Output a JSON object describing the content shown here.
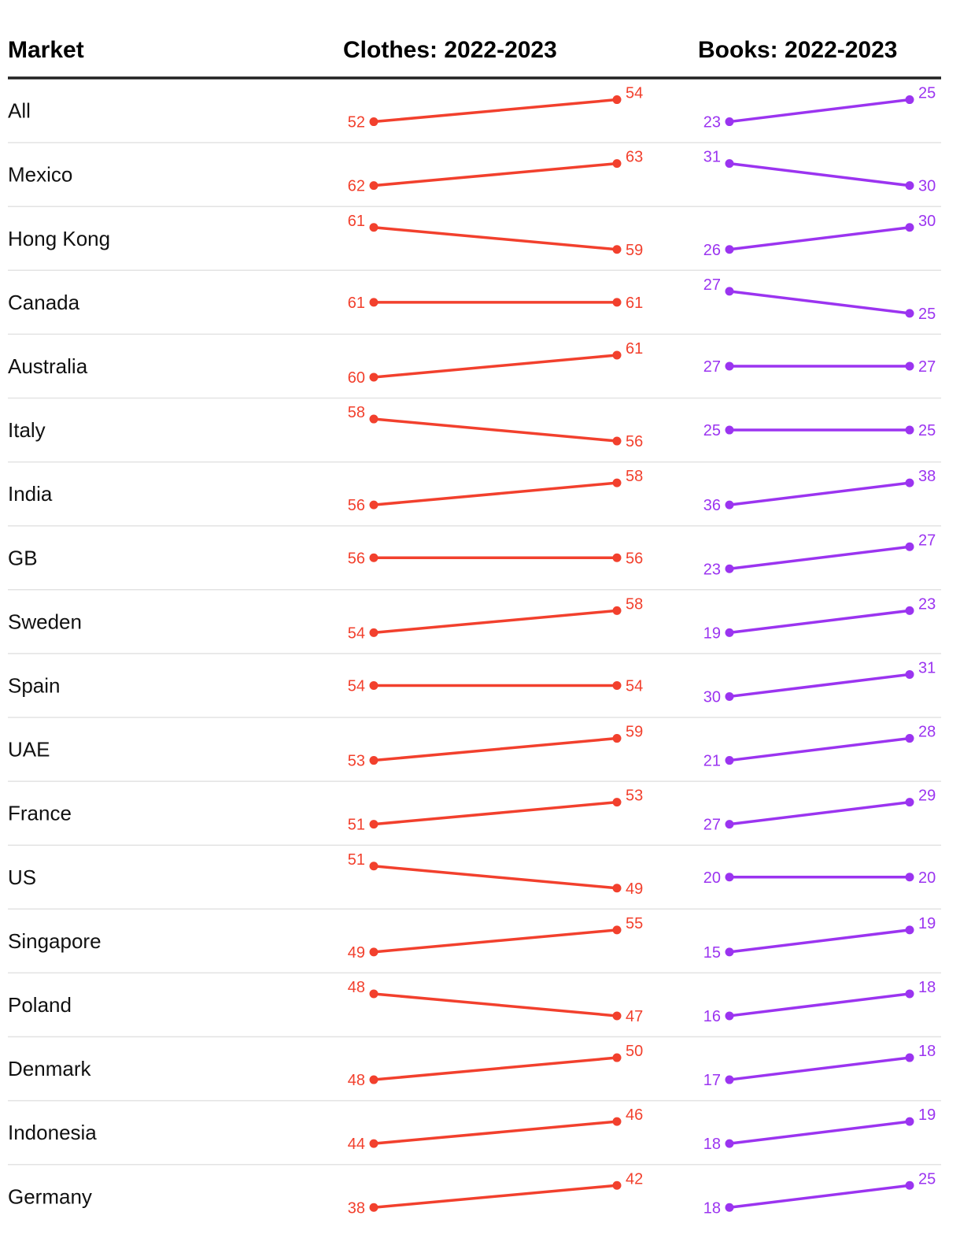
{
  "chart_data": {
    "type": "slope",
    "headers": {
      "market": "Market",
      "clothes": "Clothes: 2022-2023",
      "books": "Books: 2022-2023"
    },
    "colors": {
      "clothes": "#f2402d",
      "books": "#9b34f0",
      "divider": "#222222",
      "row_rule": "#e3e3e3"
    },
    "markets": [
      {
        "name": "All",
        "clothes": [
          52,
          54
        ],
        "books": [
          23,
          25
        ]
      },
      {
        "name": "Mexico",
        "clothes": [
          62,
          63
        ],
        "books": [
          31,
          30
        ]
      },
      {
        "name": "Hong Kong",
        "clothes": [
          61,
          59
        ],
        "books": [
          26,
          30
        ]
      },
      {
        "name": "Canada",
        "clothes": [
          61,
          61
        ],
        "books": [
          27,
          25
        ]
      },
      {
        "name": "Australia",
        "clothes": [
          60,
          61
        ],
        "books": [
          27,
          27
        ]
      },
      {
        "name": "Italy",
        "clothes": [
          58,
          56
        ],
        "books": [
          25,
          25
        ]
      },
      {
        "name": "India",
        "clothes": [
          56,
          58
        ],
        "books": [
          36,
          38
        ]
      },
      {
        "name": "GB",
        "clothes": [
          56,
          56
        ],
        "books": [
          23,
          27
        ]
      },
      {
        "name": "Sweden",
        "clothes": [
          54,
          58
        ],
        "books": [
          19,
          23
        ]
      },
      {
        "name": "Spain",
        "clothes": [
          54,
          54
        ],
        "books": [
          30,
          31
        ]
      },
      {
        "name": "UAE",
        "clothes": [
          53,
          59
        ],
        "books": [
          21,
          28
        ]
      },
      {
        "name": "France",
        "clothes": [
          51,
          53
        ],
        "books": [
          27,
          29
        ]
      },
      {
        "name": "US",
        "clothes": [
          51,
          49
        ],
        "books": [
          20,
          20
        ]
      },
      {
        "name": "Singapore",
        "clothes": [
          49,
          55
        ],
        "books": [
          15,
          19
        ]
      },
      {
        "name": "Poland",
        "clothes": [
          48,
          47
        ],
        "books": [
          16,
          18
        ]
      },
      {
        "name": "Denmark",
        "clothes": [
          48,
          50
        ],
        "books": [
          17,
          18
        ]
      },
      {
        "name": "Indonesia",
        "clothes": [
          44,
          46
        ],
        "books": [
          18,
          19
        ]
      },
      {
        "name": "Germany",
        "clothes": [
          38,
          42
        ],
        "books": [
          18,
          25
        ]
      }
    ]
  }
}
